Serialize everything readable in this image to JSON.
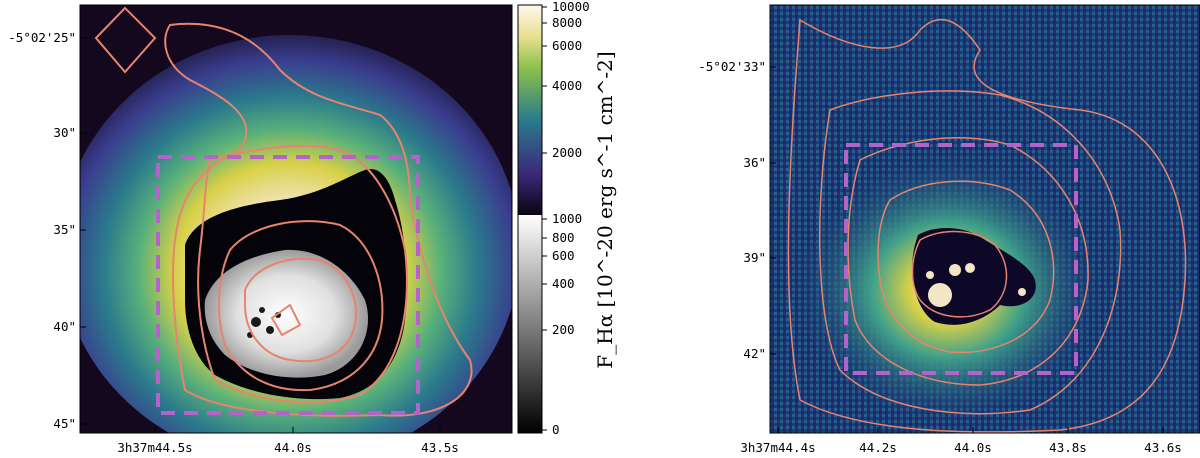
{
  "left_panel": {
    "y_ticks": [
      "-5°02'25\"",
      "30\"",
      "35\"",
      "40\"",
      "45\""
    ],
    "x_ticks": [
      "3h37m44.5s",
      "44.0s",
      "43.5s"
    ]
  },
  "colorbar": {
    "label": "F_Hα [10^-20 erg s^-1 cm^-2]",
    "ticks": [
      "10000",
      "8000",
      "6000",
      "4000",
      "2000",
      "1000",
      "800",
      "600",
      "400",
      "200",
      "0"
    ]
  },
  "right_panel": {
    "y_ticks": [
      "-5°02'33\"",
      "36\"",
      "39\"",
      "42\""
    ],
    "x_ticks": [
      "3h37m44.4s",
      "44.2s",
      "44.0s",
      "43.8s",
      "43.6s"
    ]
  },
  "colors": {
    "contour": "#e6846e",
    "box": "#b464c8",
    "cmap_low": "#0a0410",
    "cmap_mid": "#2a7a8c",
    "cmap_high": "#fff4e0"
  }
}
